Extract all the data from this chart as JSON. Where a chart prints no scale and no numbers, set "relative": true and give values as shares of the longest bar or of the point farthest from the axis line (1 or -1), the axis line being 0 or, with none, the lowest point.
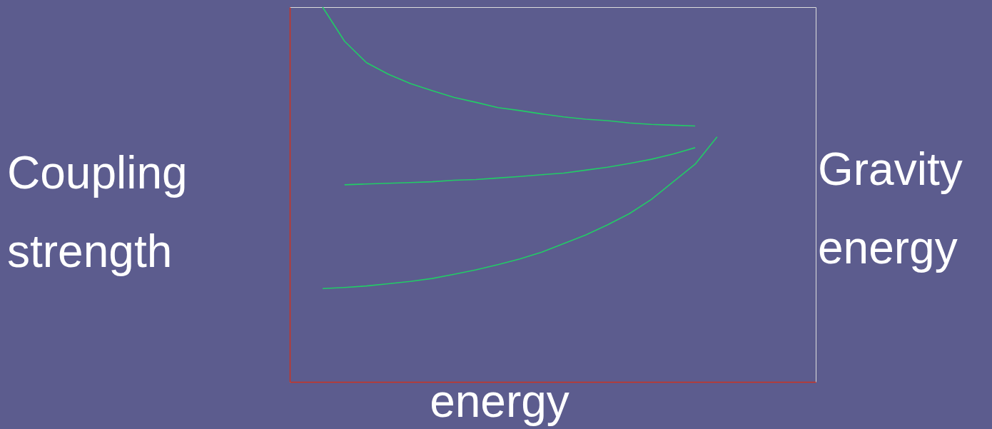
{
  "chart_data": {
    "type": "line",
    "relative": true,
    "ylabel": "Coupling strength",
    "xlabel": "energy",
    "annotations": [
      "Gravity energy"
    ],
    "grid": false,
    "marker": "none",
    "line_style": "solid",
    "categories": [
      null,
      null,
      null,
      null,
      null,
      null,
      null,
      null,
      null,
      null,
      null,
      null,
      null,
      null,
      null,
      null,
      null,
      null,
      null,
      null,
      null,
      null,
      null,
      null
    ],
    "series": [
      {
        "color": "#22cc66",
        "values": [
          null,
          1.0,
          0.909,
          0.852,
          0.821,
          0.796,
          0.777,
          0.759,
          0.746,
          0.732,
          0.724,
          0.715,
          0.707,
          0.701,
          0.697,
          0.691,
          0.687,
          0.685,
          0.683,
          null,
          null,
          null,
          null,
          null
        ]
      },
      {
        "color": "#22cc66",
        "values": [
          null,
          null,
          0.526,
          0.528,
          0.53,
          0.532,
          0.534,
          0.538,
          0.54,
          0.544,
          0.548,
          0.553,
          0.557,
          0.565,
          0.573,
          0.583,
          0.594,
          0.608,
          0.625,
          null,
          null,
          null,
          null,
          null
        ]
      },
      {
        "color": "#22cc66",
        "values": [
          null,
          0.249,
          0.252,
          0.256,
          0.262,
          0.268,
          0.276,
          0.287,
          0.299,
          0.313,
          0.328,
          0.346,
          0.369,
          0.392,
          0.419,
          0.449,
          0.487,
          0.534,
          0.581,
          0.654,
          null,
          null,
          null,
          null
        ]
      }
    ]
  }
}
